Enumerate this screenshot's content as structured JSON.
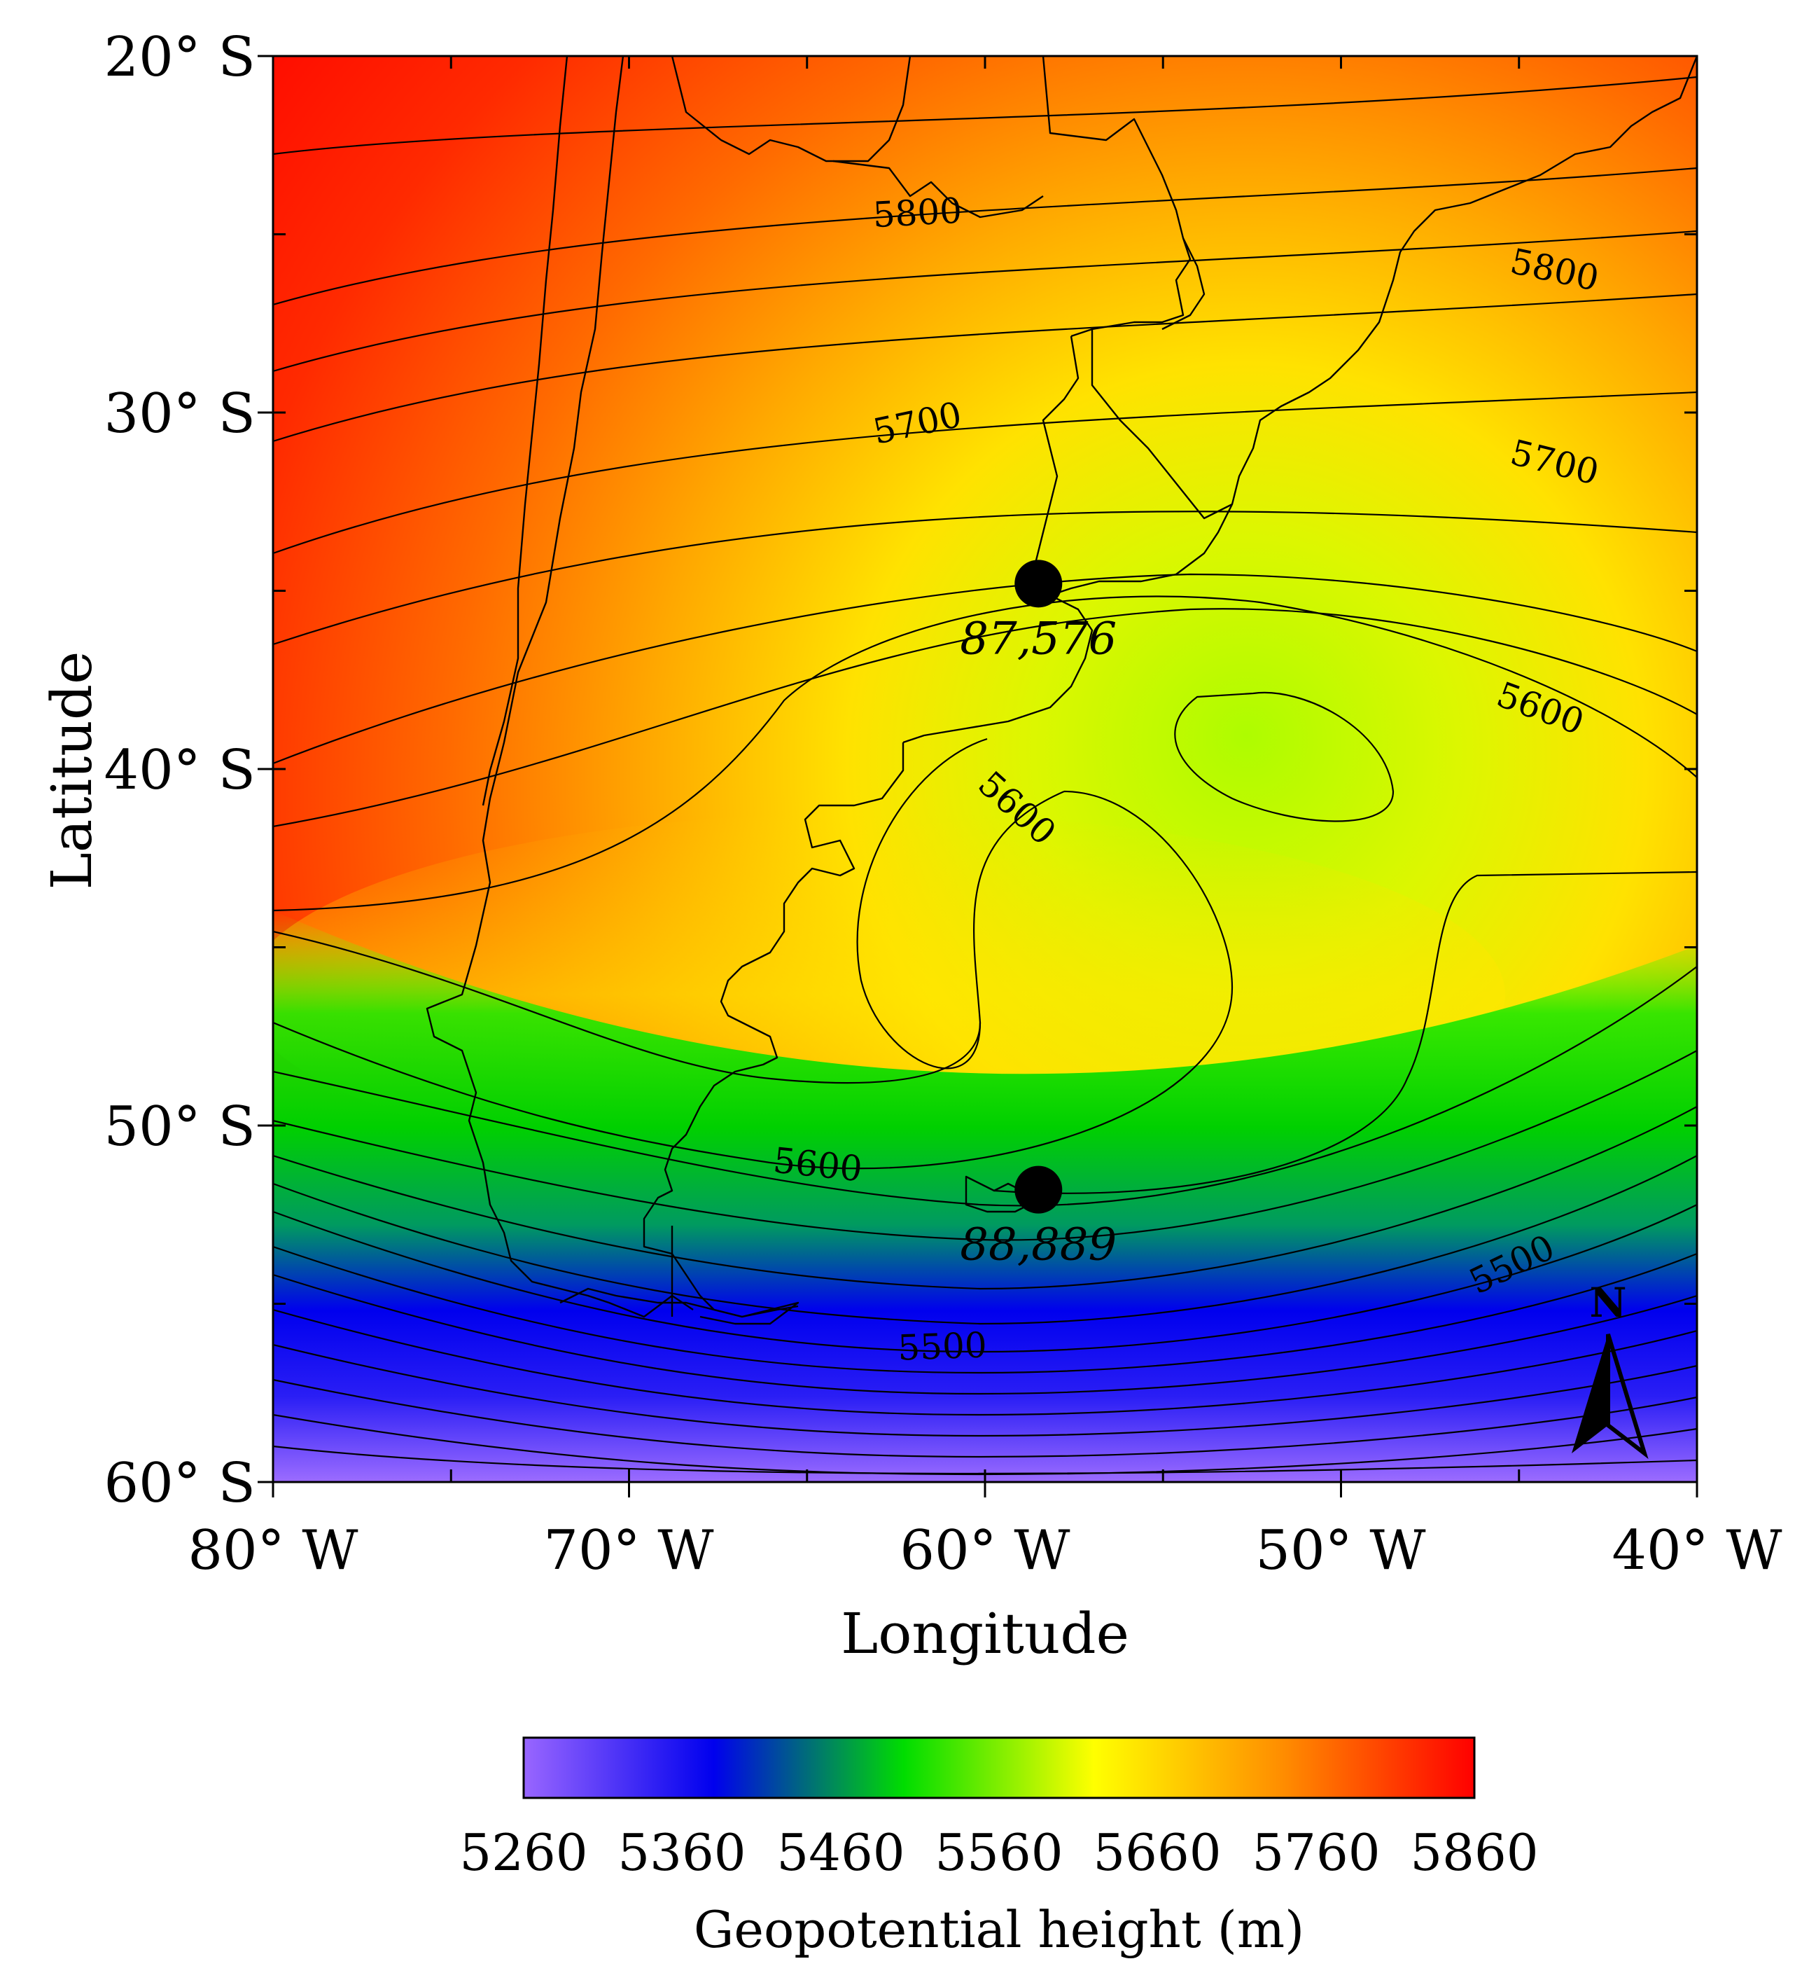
{
  "axes": {
    "xlabel": "Longitude",
    "ylabel": "Latitude",
    "x_ticks": [
      "80° W",
      "70° W",
      "60° W",
      "50° W",
      "40° W"
    ],
    "y_ticks": [
      "20° S",
      "30° S",
      "40° S",
      "50° S",
      "60° S"
    ],
    "lon_range": [
      -80,
      -40
    ],
    "lat_range": [
      -60,
      -20
    ]
  },
  "contour_labels": [
    {
      "text": "5800",
      "lon": -61.9,
      "lat": -24.4,
      "angle": -3
    },
    {
      "text": "5800",
      "lon": -44.0,
      "lat": -26.0,
      "angle": 12
    },
    {
      "text": "5700",
      "lon": -61.9,
      "lat": -30.3,
      "angle": -12
    },
    {
      "text": "5700",
      "lon": -44.0,
      "lat": -31.4,
      "angle": 14
    },
    {
      "text": "5600",
      "lon": -44.4,
      "lat": -38.3,
      "angle": 20
    },
    {
      "text": "5600",
      "lon": -59.1,
      "lat": -41.1,
      "angle": 42
    },
    {
      "text": "5600",
      "lon": -64.7,
      "lat": -51.1,
      "angle": 6
    },
    {
      "text": "5500",
      "lon": -61.2,
      "lat": -56.2,
      "angle": -2
    },
    {
      "text": "5500",
      "lon": -45.2,
      "lat": -53.9,
      "angle": -26
    }
  ],
  "markers": [
    {
      "label": "87,576",
      "lon": -58.5,
      "lat": -34.8
    },
    {
      "label": "88,889",
      "lon": -58.5,
      "lat": -51.8
    }
  ],
  "north_arrow": {
    "label": "N"
  },
  "colorbar": {
    "title": "Geopotential height (m)",
    "ticks": [
      "5260",
      "5360",
      "5460",
      "5560",
      "5660",
      "5760",
      "5860"
    ],
    "range": [
      5260,
      5860
    ],
    "colors": [
      "#9966ff",
      "#0000ee",
      "#00dd00",
      "#ffff00",
      "#ff8c00",
      "#ff0000"
    ]
  }
}
